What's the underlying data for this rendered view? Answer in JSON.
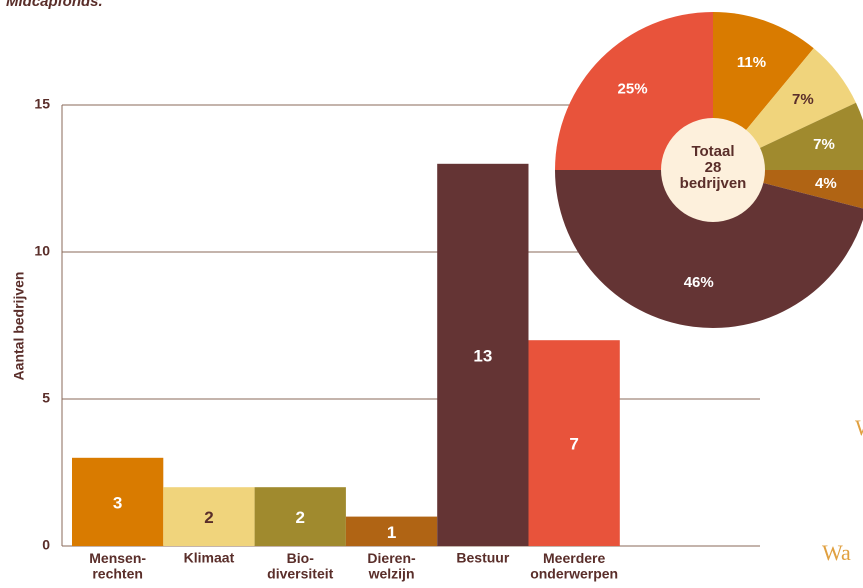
{
  "header": {
    "text": "Midcapfonds."
  },
  "chart_data": [
    {
      "type": "bar",
      "y_label": "Aantal bedrijven",
      "categories": [
        "Mensen-\nrechten",
        "Klimaat",
        "Bio-\ndiversiteit",
        "Dieren-\nwelzijn",
        "Bestuur",
        "Meerdere\nonderwerpen"
      ],
      "values": [
        3,
        2,
        2,
        1,
        13,
        7
      ],
      "colors": [
        "#d97b00",
        "#f0d47c",
        "#a08a2e",
        "#b06414",
        "#643434",
        "#e8533b"
      ],
      "label_colors": [
        "#ffffff",
        "#5a2e2a",
        "#ffffff",
        "#ffffff",
        "#ffffff",
        "#ffffff"
      ],
      "ylim": [
        0,
        15
      ],
      "yticks": [
        0,
        5,
        10,
        15
      ],
      "grid": true
    },
    {
      "type": "pie",
      "values": [
        11,
        7,
        7,
        4,
        46,
        25
      ],
      "value_labels": [
        "11%",
        "7%",
        "7%",
        "4%",
        "46%",
        "25%"
      ],
      "colors": [
        "#d97b00",
        "#f0d47c",
        "#a08a2e",
        "#b06414",
        "#643434",
        "#e8533b"
      ],
      "label_colors": [
        "#ffffff",
        "#5a2e2a",
        "#ffffff",
        "#ffffff",
        "#ffffff",
        "#ffffff"
      ],
      "center_text": [
        "Totaal",
        "28",
        "bedrijven"
      ]
    }
  ],
  "side_text": [
    "W",
    "Wa"
  ]
}
